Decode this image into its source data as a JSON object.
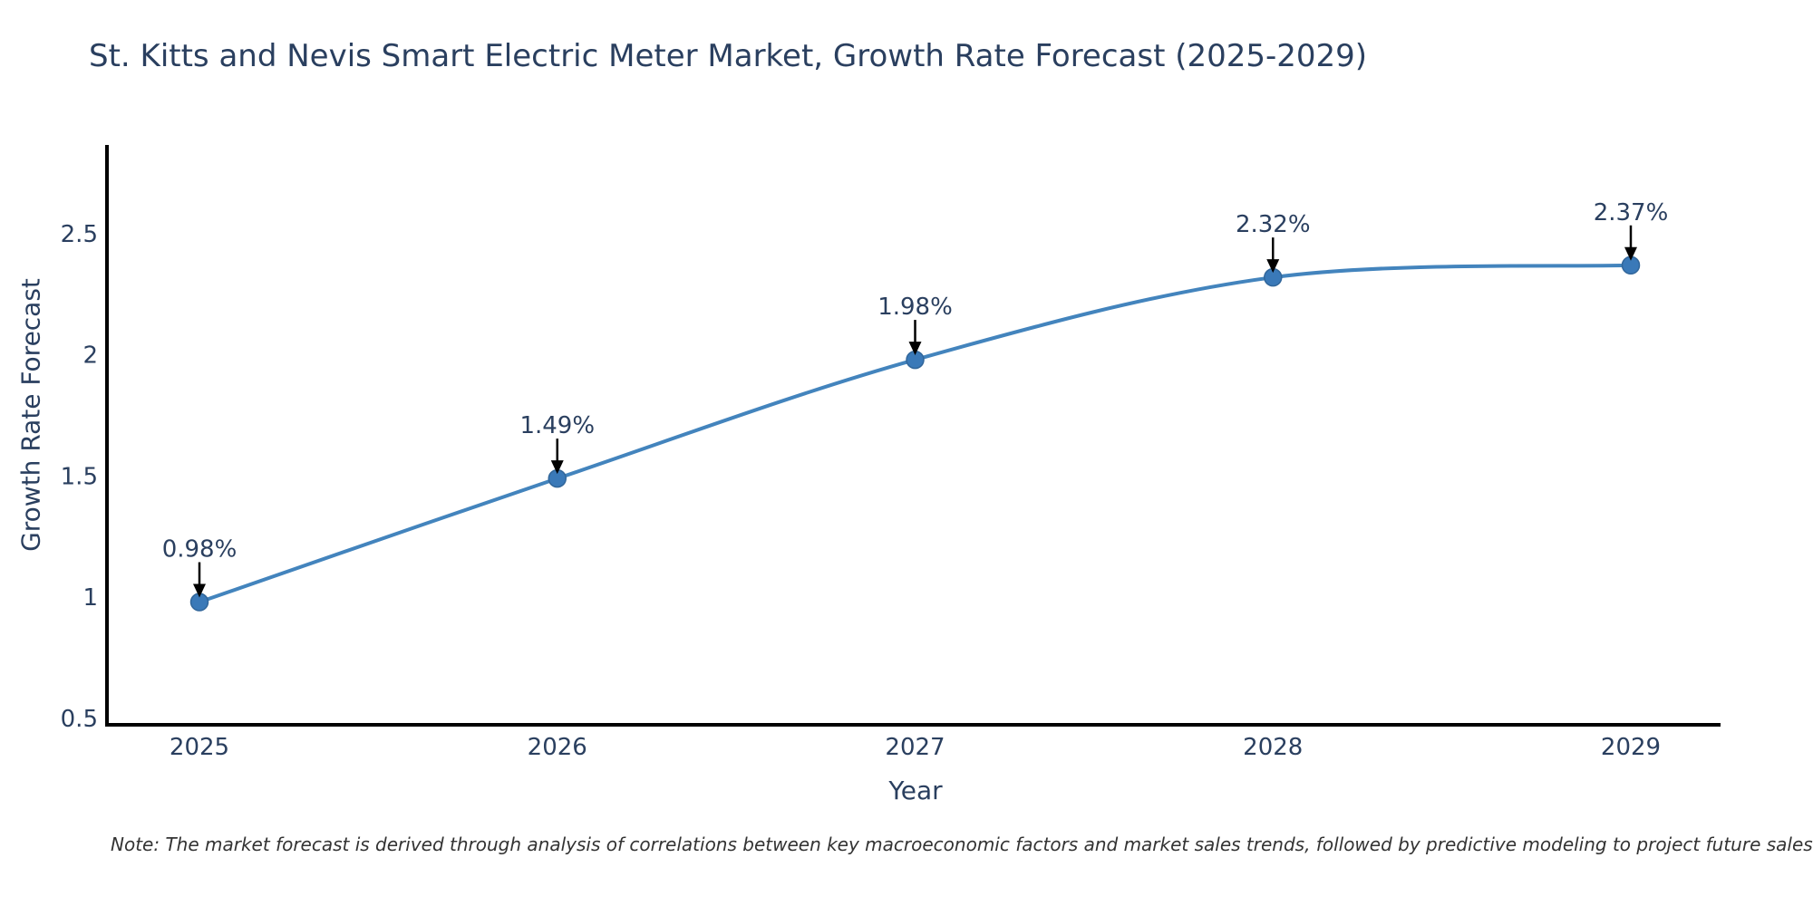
{
  "title": "St. Kitts and Nevis Smart Electric Meter Market, Growth Rate Forecast (2025-2029)",
  "note": "Note: The market forecast is derived through analysis of correlations between key macroeconomic factors and market sales trends, followed by predictive modeling to project future sales",
  "chart_data": {
    "type": "line",
    "x": [
      2025,
      2026,
      2027,
      2028,
      2029
    ],
    "values": [
      0.98,
      1.49,
      1.98,
      2.32,
      2.37
    ],
    "point_labels": [
      "0.98%",
      "1.49%",
      "1.98%",
      "2.32%",
      "2.37%"
    ],
    "series_name": "Growth Rate Forecast",
    "title": "St. Kitts and Nevis Smart Electric Meter Market, Growth Rate Forecast (2025-2029)",
    "xlabel": "Year",
    "ylabel": "Growth Rate Forecast",
    "xticks": [
      "2025",
      "2026",
      "2027",
      "2028",
      "2029"
    ],
    "yticks": [
      0.5,
      1,
      1.5,
      2,
      2.5
    ],
    "ylim": [
      0.47,
      2.87
    ],
    "line_shape": "spline",
    "grid": false,
    "legend": "none",
    "colors": {
      "line": "#4384bd",
      "marker": "#3a79b8",
      "marker_edge": "#31669a",
      "axis": "#000000",
      "text": "#2a3f5f",
      "annotation_text": "#2a3f5f",
      "annotation_arrow": "#000000",
      "background": "#ffffff"
    }
  }
}
